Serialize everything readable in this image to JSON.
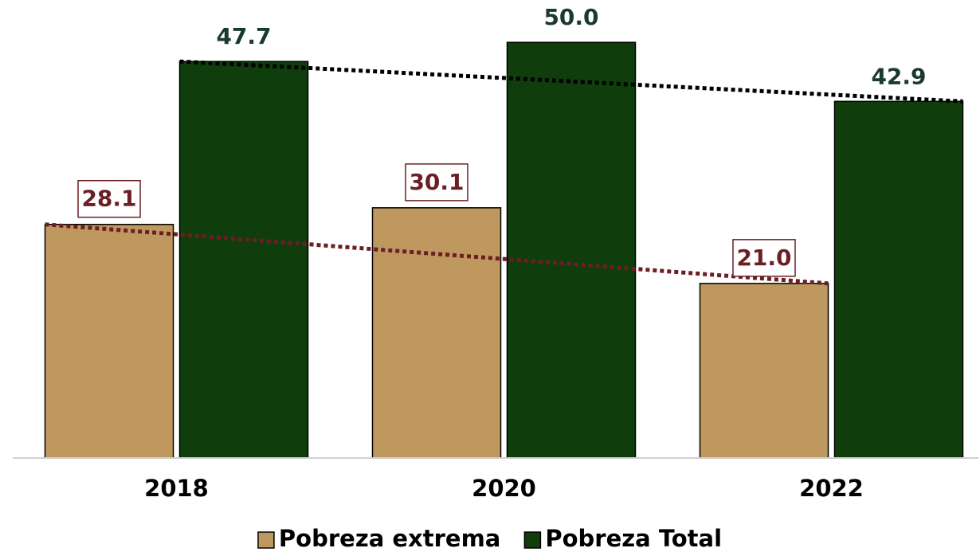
{
  "chart_data": {
    "type": "bar",
    "categories": [
      "2018",
      "2020",
      "2022"
    ],
    "series": [
      {
        "name": "Pobreza extrema",
        "color": "#bf9860",
        "label_color": "#6b1f24",
        "label_box": true,
        "trendline": true,
        "trendline_color": "#6b1f24",
        "values": [
          28.1,
          30.1,
          21.0
        ],
        "value_labels": [
          "28.1",
          "30.1",
          "21.0"
        ]
      },
      {
        "name": "Pobreza Total",
        "color": "#0f3d0c",
        "label_color": "#1a3a30",
        "label_box": false,
        "trendline": true,
        "trendline_color": "#000000",
        "values": [
          47.7,
          50.0,
          42.9
        ],
        "value_labels": [
          "47.7",
          "50.0",
          "42.9"
        ]
      }
    ],
    "ylim": [
      0,
      55
    ],
    "grid": false,
    "legend": "bottom"
  }
}
